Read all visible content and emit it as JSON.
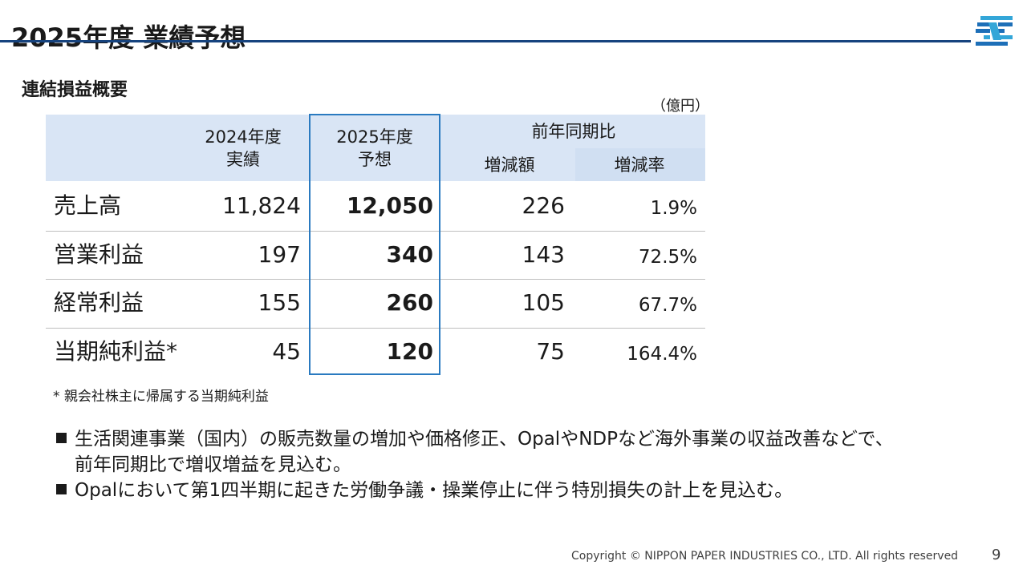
{
  "page": {
    "title": "2025年度 業績予想",
    "section_heading": "連結損益概要",
    "unit": "（億円）",
    "footnote": "* 親会社株主に帰属する当期純利益",
    "copyright": "Copyright © NIPPON PAPER INDUSTRIES CO., LTD. All rights reserved",
    "page_number": "9"
  },
  "colors": {
    "title_rule": "#16437e",
    "header_band": "#d9e5f5",
    "highlight_border": "#2a7ac0"
  },
  "table": {
    "headers": {
      "col_2024_line1": "2024年度",
      "col_2024_line2": "実績",
      "col_2025_line1": "2025年度",
      "col_2025_line2": "予想",
      "group_label": "前年同期比",
      "col_diff": "増減額",
      "col_rate": "増減率"
    },
    "rows": [
      {
        "label": "売上高",
        "v2024": "11,824",
        "v2025": "12,050",
        "diff": "226",
        "rate": "1.9%"
      },
      {
        "label": "営業利益",
        "v2024": "197",
        "v2025": "340",
        "diff": "143",
        "rate": "72.5%"
      },
      {
        "label": "経常利益",
        "v2024": "155",
        "v2025": "260",
        "diff": "105",
        "rate": "67.7%"
      },
      {
        "label": "当期純利益*",
        "v2024": "45",
        "v2025": "120",
        "diff": "75",
        "rate": "164.4%"
      }
    ]
  },
  "bullets": [
    {
      "line1": "生活関連事業（国内）の販売数量の増加や価格修正、OpalやNDPなど海外事業の収益改善などで、",
      "line2": "前年同期比で増収増益を見込む。"
    },
    {
      "line1": "Opalにおいて第1四半期に起きた労働争議・操業停止に伴う特別損失の計上を見込む。",
      "line2": ""
    }
  ]
}
